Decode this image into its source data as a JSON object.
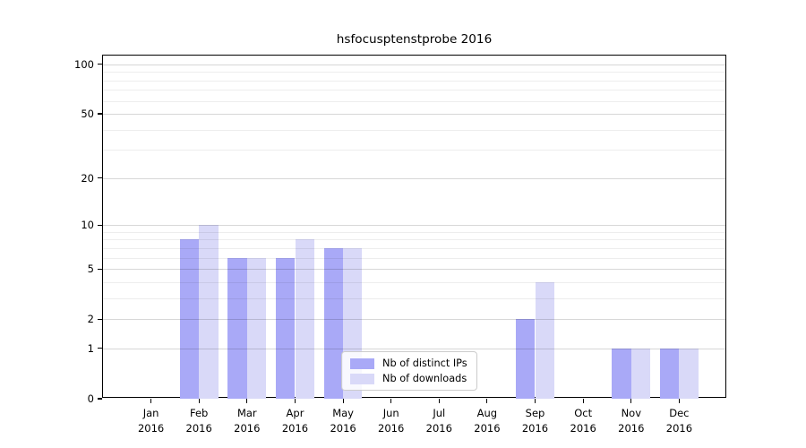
{
  "chart_data": {
    "type": "bar",
    "title": "hsfocusptenstprobe 2016",
    "scale": "log10(1+value)",
    "categories": [
      "Jan",
      "Feb",
      "Mar",
      "Apr",
      "May",
      "Jun",
      "Jul",
      "Aug",
      "Sep",
      "Oct",
      "Nov",
      "Dec"
    ],
    "year_label": "2016",
    "series": [
      {
        "name": "Nb of distinct IPs",
        "color": "#a9a9f7",
        "values": [
          0,
          8,
          6,
          6,
          7,
          0,
          0,
          0,
          2,
          0,
          1,
          1
        ]
      },
      {
        "name": "Nb of downloads",
        "color": "#d9d9f8",
        "values": [
          0,
          10,
          6,
          8,
          7,
          0,
          0,
          0,
          4,
          0,
          1,
          1
        ]
      }
    ],
    "y_ticks": [
      0,
      1,
      2,
      5,
      10,
      20,
      50,
      100
    ],
    "y_minor_gridlines": [
      3,
      4,
      6,
      7,
      8,
      9,
      30,
      40,
      60,
      70,
      80,
      90
    ],
    "ylim": [
      0,
      113
    ],
    "grid": "on",
    "legend_position": "lower center-right inside plot",
    "colors": {
      "bar_distinct_ips": "#a9a9f7",
      "bar_downloads": "#d9d9f8",
      "axis_frame": "#000000",
      "grid_major": "#d8d8d8",
      "grid_minor": "#ededed",
      "legend_border": "#cccccc",
      "background": "#ffffff"
    }
  }
}
